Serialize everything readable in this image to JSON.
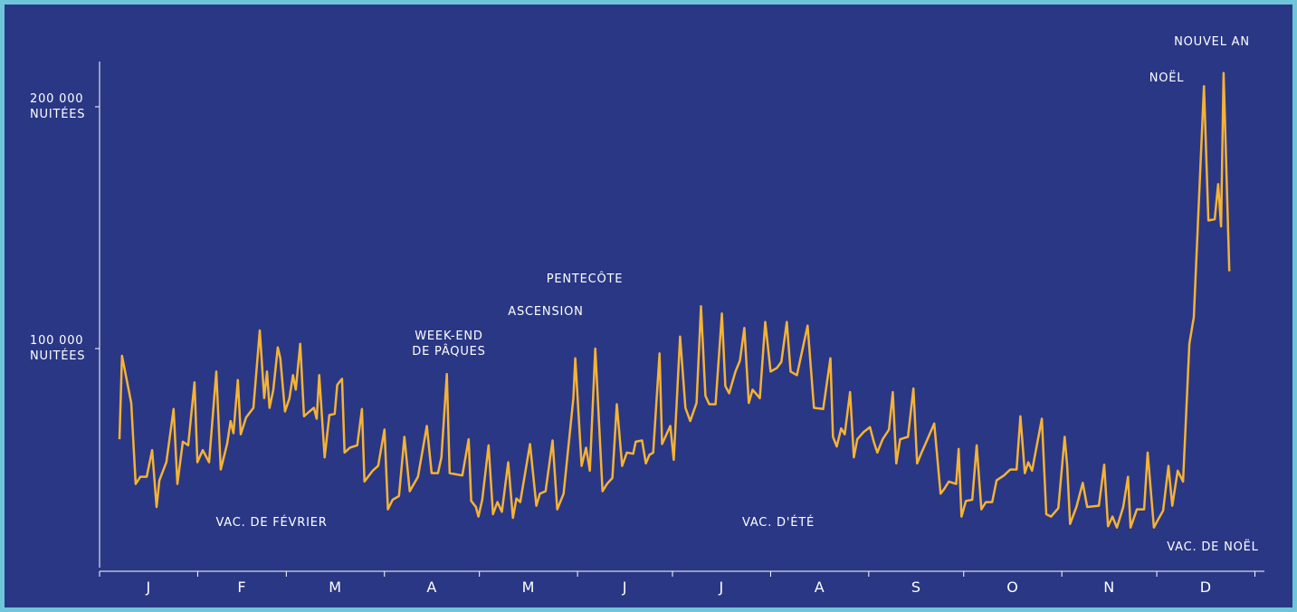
{
  "chart_data": {
    "type": "line",
    "categories": [
      "J",
      "F",
      "M",
      "A",
      "M",
      "J",
      "J",
      "A",
      "S",
      "O",
      "N",
      "D"
    ],
    "xlim": [
      0,
      368
    ],
    "xticks": [
      0,
      31,
      59,
      90,
      120,
      151,
      181,
      212,
      243,
      273,
      304,
      334,
      365
    ],
    "ylim": [
      9400,
      218700
    ],
    "yticks": [
      {
        "value": 100000,
        "label": "100 000\nNUITÉES"
      },
      {
        "value": 200000,
        "label": "200 000\nNUITÉES"
      }
    ],
    "annotations": [
      "NOUVEL AN",
      "NOËL",
      "PENTECÔTE",
      "ASCENSION",
      "WEEK-END\nDE PÂQUES",
      "VAC. DE FÉVRIER",
      "VAC. D'ÉTÉ",
      "VAC. DE NOËL"
    ],
    "series": [
      {
        "color": "#f5b335",
        "x": [
          6.3,
          7.1,
          10,
          11.4,
          12.9,
          14.9,
          16.6,
          18,
          18.9,
          21.1,
          23.4,
          24.6,
          26.3,
          28,
          30,
          30.9,
          32.6,
          34.6,
          36.9,
          38.3,
          40.3,
          41.4,
          42.3,
          43.7,
          44.6,
          46.3,
          48.6,
          50.6,
          52,
          52.9,
          53.7,
          54.9,
          56.3,
          57.1,
          58.6,
          60,
          61.1,
          62,
          63.4,
          64.6,
          66.3,
          67.7,
          68.6,
          69.4,
          71.1,
          72.6,
          74.3,
          75.1,
          76.6,
          77.4,
          79.1,
          81.4,
          82.9,
          83.7,
          86.3,
          88,
          90,
          91.1,
          92.6,
          94.6,
          96.3,
          98,
          100.6,
          103.4,
          104.9,
          106.9,
          108,
          109.7,
          110.6,
          114.6,
          116.6,
          117.4,
          118.9,
          119.7,
          120.9,
          122.9,
          124.3,
          125.7,
          127.1,
          129.1,
          130.6,
          131.7,
          132.9,
          136,
          138,
          139.1,
          140.9,
          143.1,
          144.6,
          146.6,
          149.7,
          150.3,
          152.3,
          153.7,
          154.9,
          156.6,
          158.9,
          160.3,
          162,
          163.4,
          165.1,
          166.6,
          168.6,
          169.4,
          171.4,
          172.6,
          173.7,
          174.9,
          176.9,
          177.7,
          180.3,
          181.4,
          183.4,
          185.1,
          186.6,
          188.6,
          190,
          191.4,
          192.6,
          194.6,
          196.6,
          197.7,
          198.9,
          200.9,
          202.3,
          203.7,
          205.1,
          206.3,
          208.6,
          210.3,
          212,
          214,
          215.4,
          217.1,
          218.3,
          220.3,
          223.7,
          225.7,
          228.6,
          230.9,
          231.7,
          232.9,
          234.3,
          235.4,
          237.1,
          238.3,
          239.4,
          241.4,
          243.4,
          244.6,
          245.7,
          247.4,
          249.4,
          250.6,
          251.7,
          252.9,
          255.4,
          257.1,
          258.3,
          259.7,
          260.9,
          263.7,
          265.7,
          266.9,
          268.3,
          270.6,
          271.4,
          272.3,
          273.7,
          275.7,
          277.1,
          278.6,
          280,
          282,
          283.4,
          285.7,
          287.7,
          289.7,
          290.9,
          292.3,
          293.4,
          294.6,
          297.7,
          299.1,
          300.6,
          302.9,
          304.9,
          305.7,
          306.6,
          308.6,
          310.6,
          312,
          315.7,
          317.4,
          318.6,
          320,
          321.4,
          323.4,
          324.9,
          325.7,
          327.7,
          330,
          331.1,
          333.1,
          334.3,
          336,
          337.7,
          338.9,
          340.6,
          342.3,
          344.3,
          345.7,
          348.9,
          350.3,
          352.3,
          353.4,
          354.3,
          355.1,
          356.9
        ],
        "values": [
          62500,
          97000,
          77500,
          44000,
          47000,
          47000,
          58000,
          34500,
          45500,
          53000,
          75000,
          44000,
          61500,
          60000,
          86000,
          53000,
          58000,
          53000,
          90500,
          50000,
          60500,
          70000,
          65000,
          87000,
          64500,
          71500,
          75500,
          107500,
          79500,
          90500,
          75500,
          83000,
          100500,
          96000,
          74000,
          79500,
          89000,
          83000,
          102000,
          72000,
          74000,
          75500,
          71000,
          89000,
          55000,
          72500,
          73000,
          85000,
          87500,
          57000,
          59000,
          60000,
          75000,
          45000,
          49500,
          51500,
          66500,
          33500,
          37500,
          39000,
          63500,
          41000,
          47000,
          68000,
          48500,
          48500,
          55000,
          89500,
          48500,
          47500,
          62500,
          37000,
          34500,
          30500,
          37500,
          60000,
          31500,
          36500,
          32500,
          53000,
          30000,
          38000,
          36500,
          60500,
          35000,
          40000,
          41000,
          62000,
          33500,
          40000,
          79500,
          96000,
          51500,
          59000,
          49500,
          100000,
          41000,
          44000,
          46500,
          77000,
          51500,
          57000,
          56500,
          61500,
          62000,
          52500,
          56000,
          57000,
          98000,
          60500,
          68000,
          54000,
          105000,
          75500,
          70000,
          77500,
          117500,
          80500,
          77000,
          77000,
          114500,
          84500,
          81500,
          90500,
          95000,
          108500,
          77500,
          83000,
          79500,
          111000,
          90500,
          92000,
          94500,
          111000,
          90500,
          89000,
          109500,
          75500,
          75000,
          96000,
          63500,
          59500,
          67000,
          64500,
          82000,
          55000,
          62500,
          65500,
          67500,
          61500,
          57000,
          62500,
          66500,
          82000,
          52500,
          62500,
          63500,
          83500,
          52500,
          57000,
          60500,
          69000,
          40000,
          42000,
          45000,
          44000,
          58500,
          30500,
          37000,
          37500,
          60000,
          33500,
          36500,
          36500,
          45500,
          47500,
          50000,
          50000,
          72000,
          48500,
          53000,
          49500,
          71000,
          31500,
          30500,
          34000,
          63500,
          51500,
          27500,
          34500,
          44500,
          34500,
          35000,
          52000,
          26500,
          30500,
          26000,
          34500,
          47000,
          26000,
          33500,
          33500,
          57000,
          26000,
          29000,
          33000,
          51500,
          35000,
          49500,
          45000,
          102000,
          113000,
          208500,
          153000,
          153500,
          168000,
          150500,
          214000,
          132000
        ]
      }
    ]
  }
}
